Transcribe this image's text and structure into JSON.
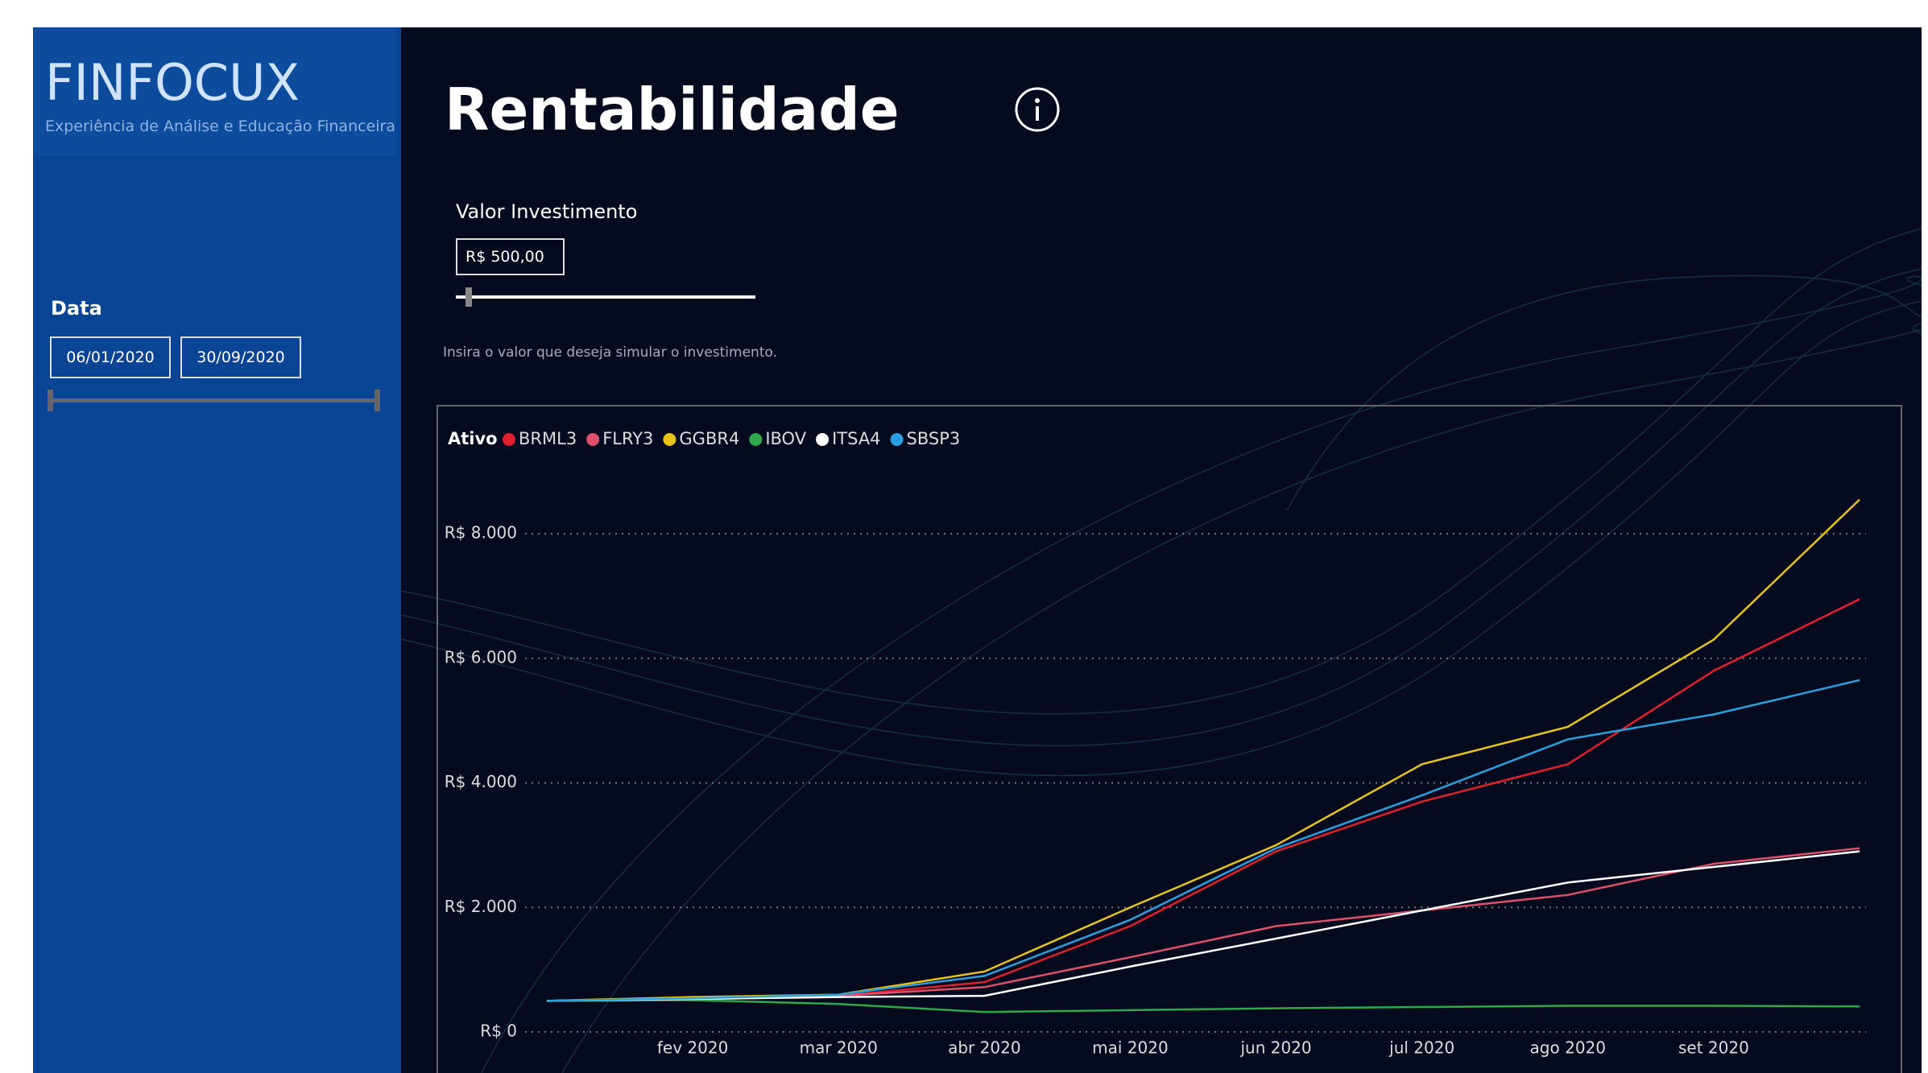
{
  "header": {
    "title": "FINFOCUX",
    "subtitle": "Experiência de Análise e Educação Financeira"
  },
  "filters": {
    "date_label": "Data",
    "start": "06/01/2020",
    "end": "30/09/2020"
  },
  "page": {
    "title": "Rentabilidade",
    "investment_label": "Valor Investimento",
    "investment_value": "R$ 500,00",
    "hint": "Insira o valor que deseja simular o investimento."
  },
  "chart_data": {
    "type": "line",
    "legend_title": "Ativo",
    "x": [
      "2020-01",
      "2020-02",
      "2020-03",
      "2020-04",
      "2020-05",
      "2020-06",
      "2020-07",
      "2020-08",
      "2020-09",
      "2020-10"
    ],
    "xlim": [
      "2020-01",
      "2020-10"
    ],
    "xticks": [
      {
        "value": "2020-02",
        "label": "fev 2020"
      },
      {
        "value": "2020-03",
        "label": "mar 2020"
      },
      {
        "value": "2020-04",
        "label": "abr 2020"
      },
      {
        "value": "2020-05",
        "label": "mai 2020"
      },
      {
        "value": "2020-06",
        "label": "jun 2020"
      },
      {
        "value": "2020-07",
        "label": "jul 2020"
      },
      {
        "value": "2020-08",
        "label": "ago 2020"
      },
      {
        "value": "2020-09",
        "label": "set 2020"
      }
    ],
    "ylim": [
      0,
      8700
    ],
    "yticks": [
      {
        "value": 0,
        "label": "R$ 0"
      },
      {
        "value": 2000,
        "label": "R$ 2.000"
      },
      {
        "value": 4000,
        "label": "R$ 4.000"
      },
      {
        "value": 6000,
        "label": "R$ 6.000"
      },
      {
        "value": 8000,
        "label": "R$ 8.000"
      }
    ],
    "grid": true,
    "series": [
      {
        "name": "BRML3",
        "color": "#e0202a",
        "values": [
          500,
          520,
          580,
          800,
          1700,
          2900,
          3700,
          4300,
          5800,
          6950
        ]
      },
      {
        "name": "FLRY3",
        "color": "#e0506a",
        "values": [
          500,
          540,
          580,
          720,
          1200,
          1700,
          1950,
          2200,
          2700,
          2950
        ]
      },
      {
        "name": "GGBR4",
        "color": "#e8c31a",
        "values": [
          500,
          560,
          600,
          970,
          2000,
          3000,
          4300,
          4900,
          6300,
          8550
        ]
      },
      {
        "name": "IBOV",
        "color": "#2ea84a",
        "values": [
          500,
          510,
          450,
          320,
          350,
          380,
          400,
          420,
          420,
          410
        ]
      },
      {
        "name": "ITSA4",
        "color": "#ffffff",
        "values": [
          500,
          530,
          560,
          580,
          1050,
          1500,
          1950,
          2400,
          2650,
          2900
        ]
      },
      {
        "name": "SBSP3",
        "color": "#2a9fe0",
        "values": [
          500,
          540,
          600,
          900,
          1800,
          2950,
          3800,
          4700,
          5100,
          5650
        ]
      }
    ]
  }
}
